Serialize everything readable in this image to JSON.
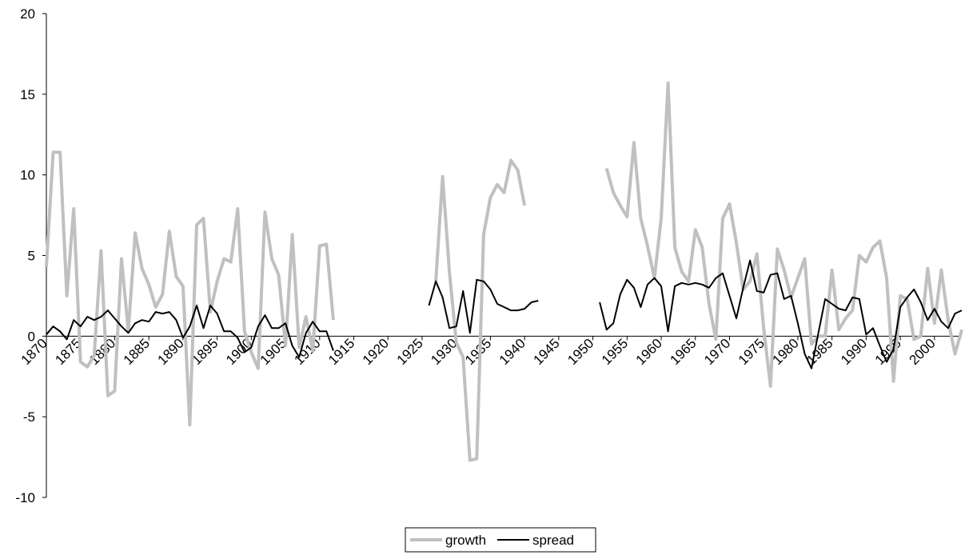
{
  "chart_data": {
    "type": "line",
    "x": [
      1870,
      1871,
      1872,
      1873,
      1874,
      1875,
      1876,
      1877,
      1878,
      1879,
      1880,
      1881,
      1882,
      1883,
      1884,
      1885,
      1886,
      1887,
      1888,
      1889,
      1890,
      1891,
      1892,
      1893,
      1894,
      1895,
      1896,
      1897,
      1898,
      1899,
      1900,
      1901,
      1902,
      1903,
      1904,
      1905,
      1906,
      1907,
      1908,
      1909,
      1910,
      1911,
      1912,
      1913,
      1914,
      1915,
      1916,
      1917,
      1918,
      1919,
      1920,
      1921,
      1922,
      1923,
      1924,
      1925,
      1926,
      1927,
      1928,
      1929,
      1930,
      1931,
      1932,
      1933,
      1934,
      1935,
      1936,
      1937,
      1938,
      1939,
      1940,
      1941,
      1942,
      1943,
      1944,
      1945,
      1946,
      1947,
      1948,
      1949,
      1950,
      1951,
      1952,
      1953,
      1954,
      1955,
      1956,
      1957,
      1958,
      1959,
      1960,
      1961,
      1962,
      1963,
      1964,
      1965,
      1966,
      1967,
      1968,
      1969,
      1970,
      1971,
      1972,
      1973,
      1974,
      1975,
      1976,
      1977,
      1978,
      1979,
      1980,
      1981,
      1982,
      1983,
      1984,
      1985,
      1986,
      1987,
      1988,
      1989,
      1990,
      1991,
      1992,
      1993,
      1994,
      1995,
      1996,
      1997,
      1998,
      1999,
      2000,
      2001,
      2002,
      2003,
      2004
    ],
    "series": [
      {
        "name": "growth",
        "color": "#c0c0c0",
        "width": 4,
        "values": [
          4.3,
          11.4,
          11.4,
          2.5,
          7.9,
          -1.6,
          -1.9,
          -1.2,
          5.3,
          -3.7,
          -3.4,
          4.8,
          0.3,
          6.4,
          4.2,
          3.2,
          1.8,
          2.6,
          6.5,
          3.7,
          3.1,
          -5.5,
          6.9,
          7.3,
          1.5,
          3.4,
          4.8,
          4.6,
          7.9,
          0.3,
          -1.0,
          -2.0,
          7.7,
          4.8,
          3.8,
          -0.6,
          6.3,
          -0.7,
          1.2,
          -0.9,
          5.6,
          5.7,
          1.0,
          null,
          null,
          null,
          null,
          null,
          null,
          null,
          null,
          null,
          null,
          null,
          null,
          null,
          null,
          3.4,
          9.9,
          4.0,
          -0.4,
          -1.3,
          -7.7,
          -7.6,
          6.3,
          8.6,
          9.4,
          8.9,
          10.9,
          10.3,
          8.1,
          null,
          null,
          null,
          null,
          null,
          null,
          null,
          null,
          null,
          null,
          null,
          10.4,
          8.9,
          8.1,
          7.4,
          12.0,
          7.3,
          5.6,
          3.6,
          7.3,
          15.7,
          5.5,
          4.0,
          3.4,
          6.6,
          5.5,
          2.0,
          -0.2,
          7.3,
          8.2,
          5.8,
          2.9,
          3.4,
          5.1,
          0.5,
          -3.1,
          5.4,
          4.1,
          2.4,
          3.6,
          4.8,
          -0.5,
          0.0,
          0.0,
          4.1,
          0.4,
          1.1,
          1.6,
          5.0,
          4.6,
          5.5,
          5.9,
          3.6,
          -2.8,
          2.5,
          2.3,
          -0.2,
          0.0,
          4.2,
          0.8,
          4.1,
          1.0,
          -1.1,
          0.4
        ]
      },
      {
        "name": "spread",
        "color": "#000000",
        "width": 2,
        "values": [
          0.1,
          0.6,
          0.3,
          -0.2,
          1.0,
          0.6,
          1.2,
          1.0,
          1.2,
          1.6,
          1.1,
          0.6,
          0.2,
          0.8,
          1.0,
          0.9,
          1.5,
          1.4,
          1.5,
          1.0,
          -0.1,
          0.6,
          1.9,
          0.5,
          1.9,
          1.4,
          0.3,
          0.3,
          -0.1,
          -1.0,
          -0.7,
          0.6,
          1.3,
          0.5,
          0.5,
          0.8,
          -0.6,
          -1.3,
          0.2,
          0.9,
          0.3,
          0.3,
          -0.9,
          null,
          null,
          null,
          null,
          null,
          null,
          null,
          null,
          null,
          null,
          null,
          null,
          null,
          1.9,
          3.4,
          2.4,
          0.5,
          0.6,
          2.8,
          0.2,
          3.5,
          3.4,
          2.9,
          2.0,
          1.8,
          1.6,
          1.6,
          1.7,
          2.1,
          2.2,
          null,
          null,
          null,
          null,
          null,
          null,
          null,
          null,
          2.1,
          0.4,
          0.8,
          2.6,
          3.5,
          3.0,
          1.8,
          3.2,
          3.6,
          3.1,
          0.3,
          3.1,
          3.3,
          3.2,
          3.3,
          3.2,
          3.0,
          3.6,
          3.9,
          2.5,
          1.1,
          3.0,
          4.7,
          2.8,
          2.7,
          3.8,
          3.9,
          2.3,
          2.5,
          0.8,
          -1.1,
          -2.0,
          0.2,
          2.3,
          2.0,
          1.7,
          1.6,
          2.4,
          2.3,
          0.1,
          0.5,
          -0.6,
          -1.6,
          -0.8,
          1.8,
          2.4,
          2.9,
          2.1,
          1.0,
          1.7,
          0.9,
          0.5,
          1.4,
          1.6
        ]
      }
    ],
    "xlim": [
      1870,
      2004
    ],
    "xticks": [
      1870,
      1875,
      1880,
      1885,
      1890,
      1895,
      1900,
      1905,
      1910,
      1915,
      1920,
      1925,
      1930,
      1935,
      1940,
      1945,
      1950,
      1955,
      1960,
      1965,
      1970,
      1975,
      1980,
      1985,
      1990,
      1995,
      2000
    ],
    "ylim": [
      -10,
      20
    ],
    "yticks": [
      -10,
      -5,
      0,
      5,
      10,
      15,
      20
    ],
    "grid": false,
    "legend": "bottom"
  }
}
